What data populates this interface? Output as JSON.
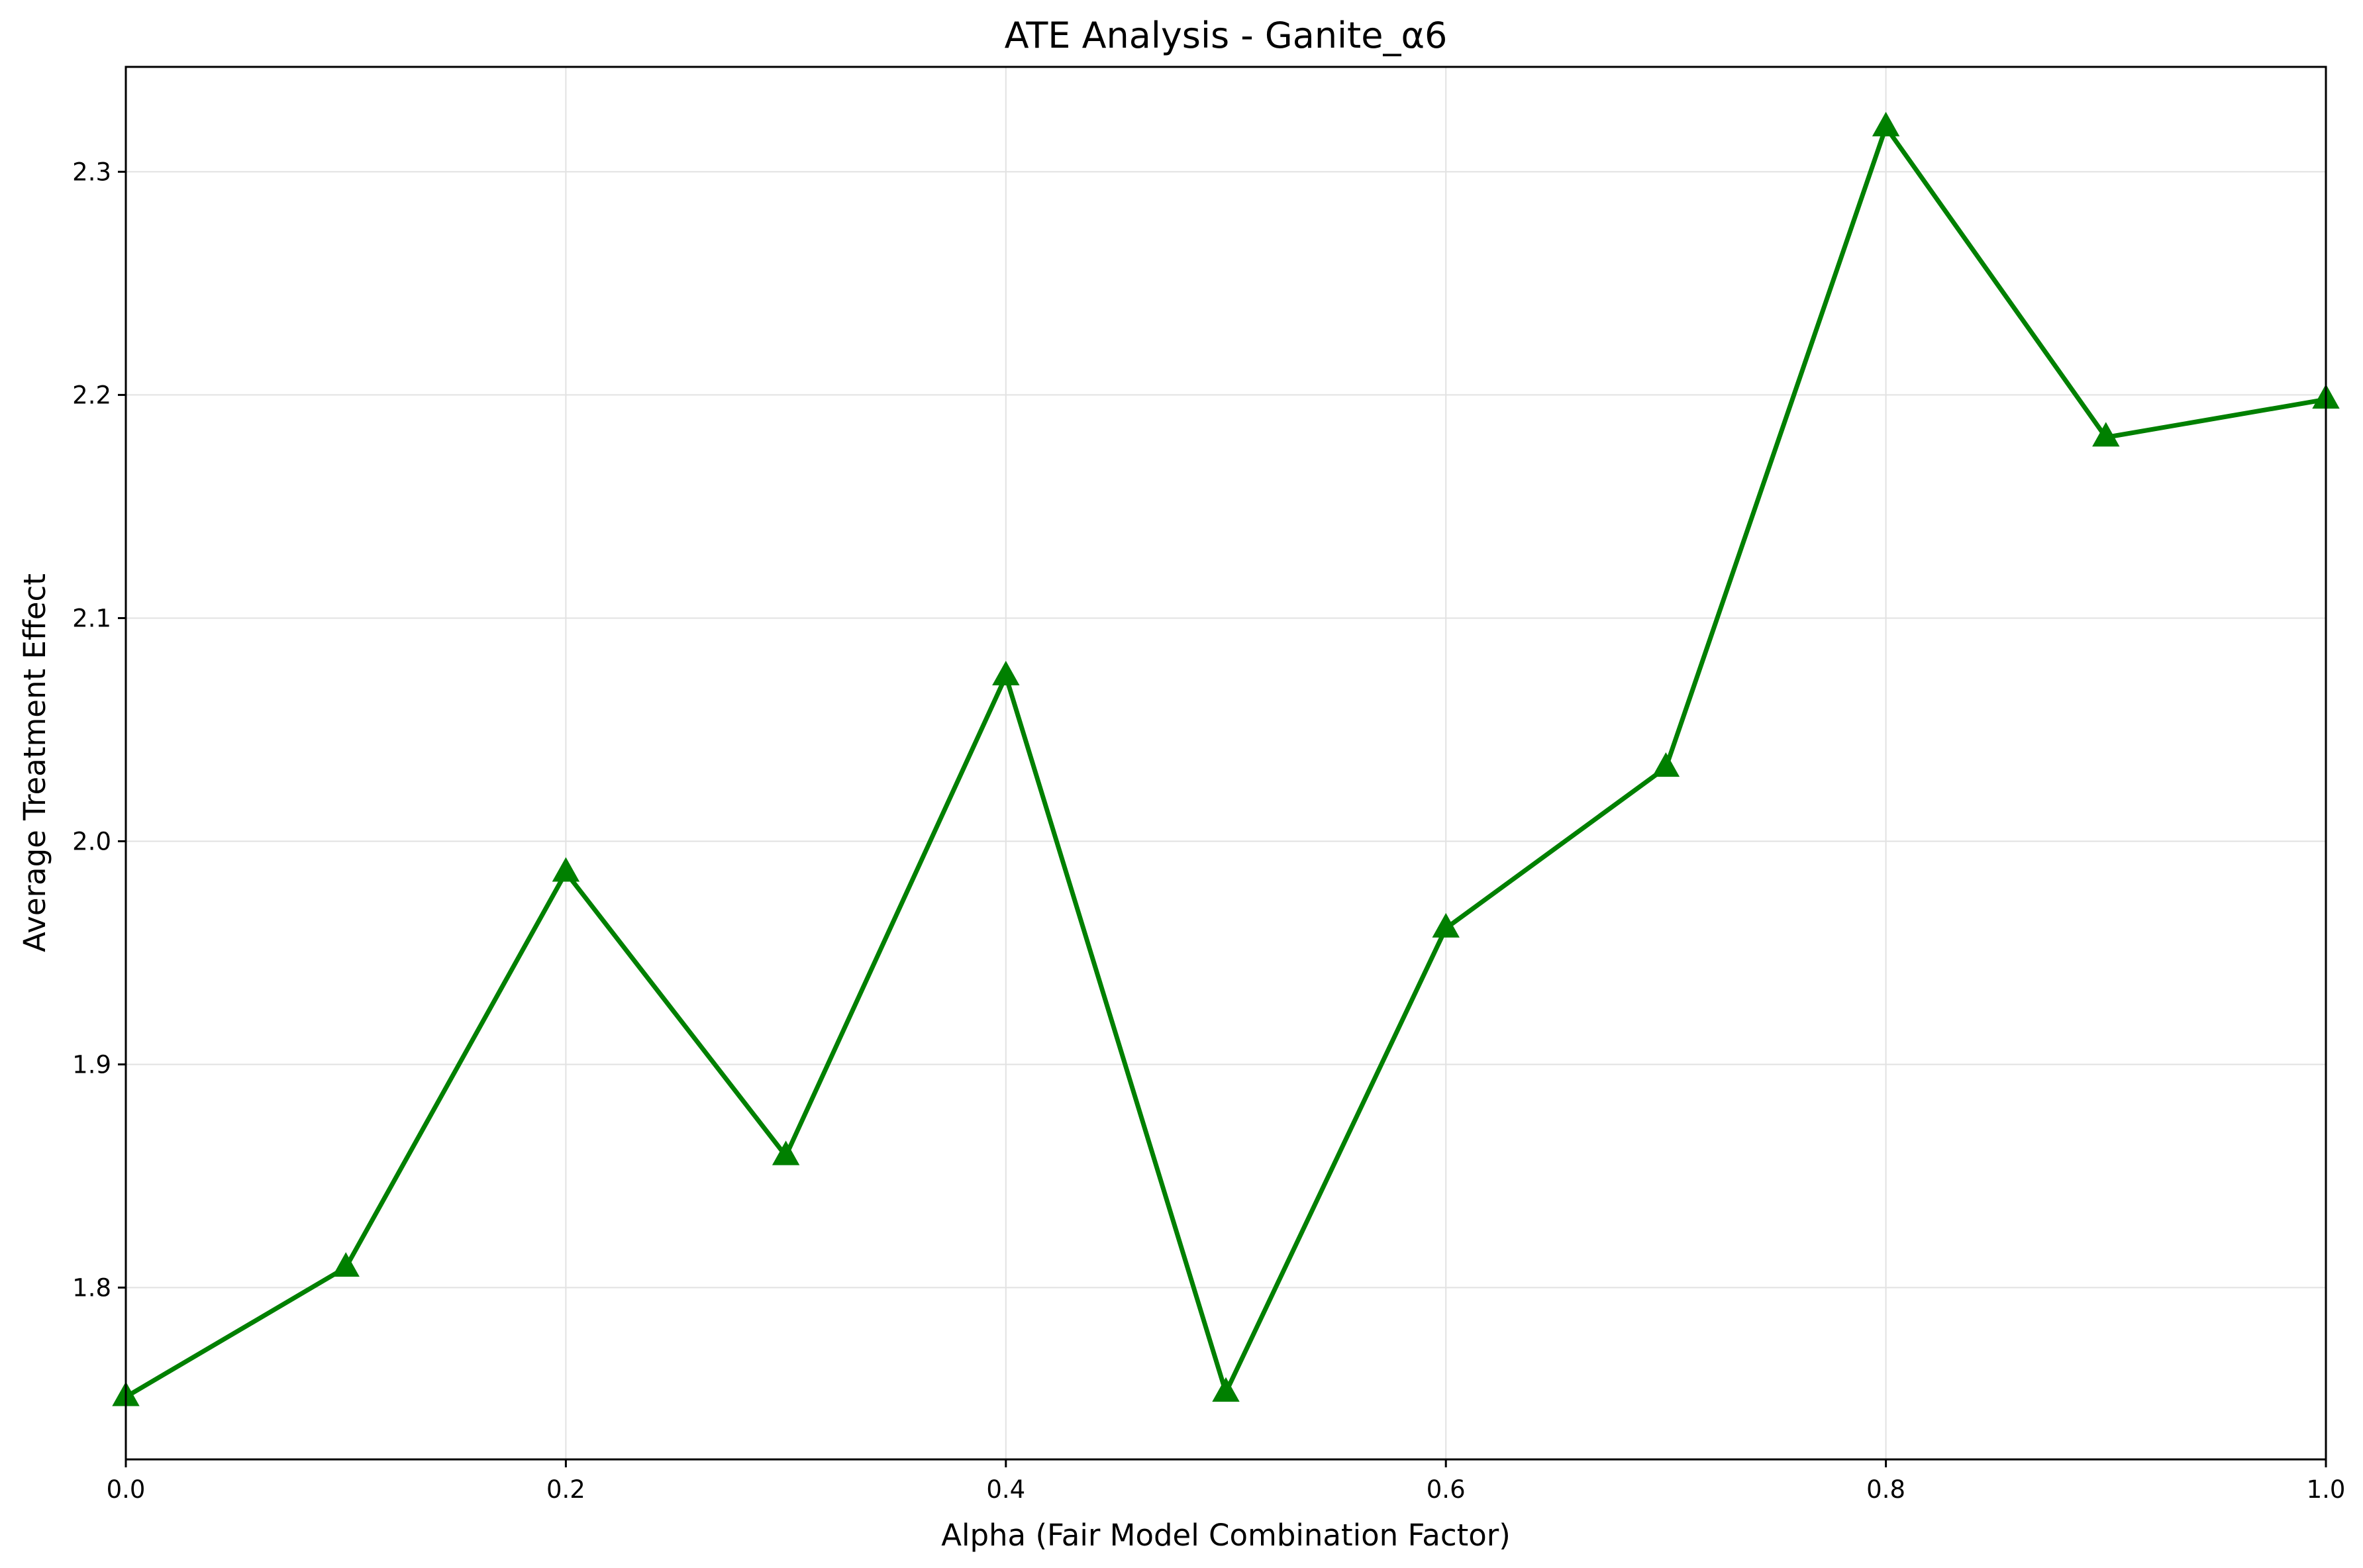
{
  "chart_data": {
    "type": "line",
    "title": "ATE Analysis - Ganite_α6",
    "xlabel": "Alpha (Fair Model Combination Factor)",
    "ylabel": "Average Treatment Effect",
    "xlim": [
      0.0,
      1.0
    ],
    "ylim": [
      1.723,
      2.347
    ],
    "xticks": [
      0.0,
      0.2,
      0.4,
      0.6,
      0.8,
      1.0
    ],
    "xtick_labels": [
      "0.0",
      "0.2",
      "0.4",
      "0.6",
      "0.8",
      "1.0"
    ],
    "yticks": [
      1.8,
      1.9,
      2.0,
      2.1,
      2.2,
      2.3
    ],
    "ytick_labels": [
      "1.8",
      "1.9",
      "2.0",
      "2.1",
      "2.2",
      "2.3"
    ],
    "grid": true,
    "series": [
      {
        "color": "#008000",
        "marker": "triangle-up",
        "x": [
          0.0,
          0.1,
          0.2,
          0.3,
          0.4,
          0.5,
          0.6,
          0.7,
          0.8,
          0.9,
          1.0
        ],
        "values": [
          1.751,
          1.809,
          1.986,
          1.859,
          2.074,
          1.753,
          1.961,
          2.033,
          2.32,
          2.181,
          2.198
        ]
      }
    ]
  }
}
